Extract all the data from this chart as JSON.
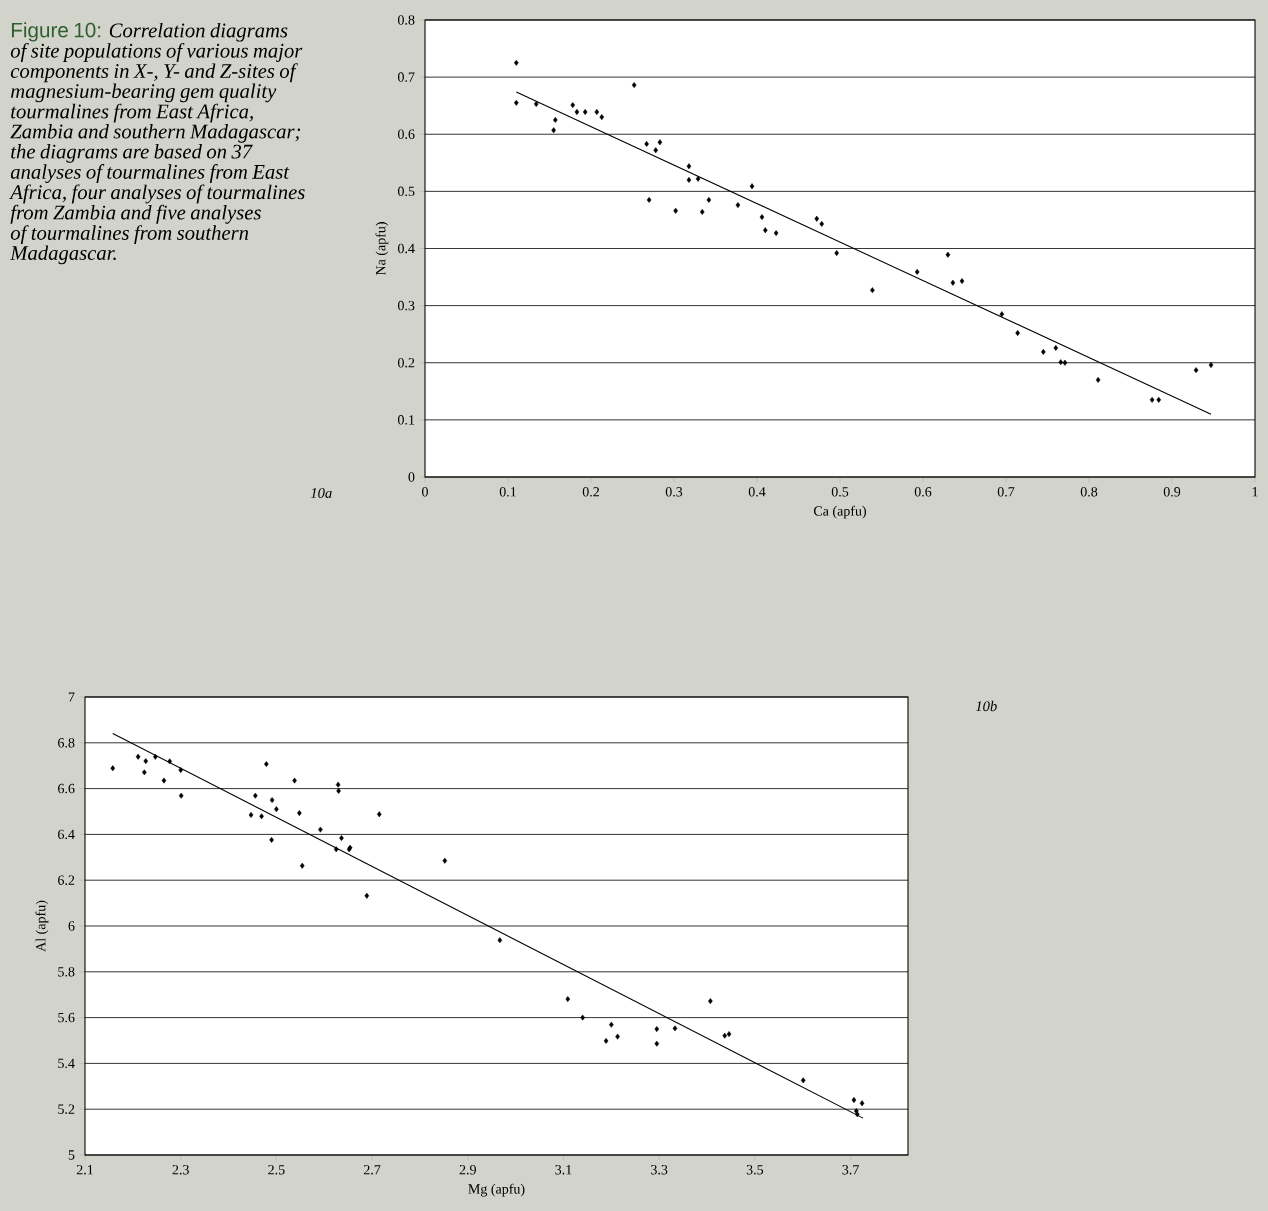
{
  "chart_data": [
    {
      "type": "other",
      "title": "Figure 10:",
      "subtitle": "Correlation diagrams of site populations of various major components in X-, Y- and Z-sites of magnesium-bearing gem quality tourmalines from East Africa, Zambia and southern Madagascar; the diagrams are based on 37 analyses of tourmalines from East Africa, four analyses of tourmalines from Zambia and five analyses of tourmalines from southern Madagascar."
    },
    {
      "type": "scatter",
      "xlabel": "Ca (apfu)",
      "ylabel": "Na (apfu)",
      "annotations": [
        "10a"
      ],
      "grid": "y",
      "xlim": [
        0,
        1
      ],
      "ylim": [
        0,
        0.8
      ],
      "xticks": [
        0,
        0.1,
        0.2,
        0.3,
        0.4,
        0.5,
        0.6,
        0.7,
        0.8,
        0.9,
        1
      ],
      "yticks": [
        0,
        0.1,
        0.2,
        0.3,
        0.4,
        0.5,
        0.6,
        0.7,
        0.8
      ],
      "series": [
        {
          "marker": "diamond",
          "color": "#000000",
          "x": [
            0.11,
            0.11,
            0.134,
            0.157,
            0.155,
            0.178,
            0.183,
            0.193,
            0.207,
            0.213,
            0.252,
            0.267,
            0.278,
            0.283,
            0.27,
            0.302,
            0.318,
            0.318,
            0.329,
            0.334,
            0.342,
            0.377,
            0.394,
            0.406,
            0.41,
            0.423,
            0.472,
            0.478,
            0.496,
            0.539,
            0.593,
            0.63,
            0.636,
            0.647,
            0.695,
            0.714,
            0.745,
            0.76,
            0.766,
            0.771,
            0.811,
            0.876,
            0.884,
            0.929,
            0.947
          ],
          "values": [
            0.725,
            0.655,
            0.653,
            0.625,
            0.607,
            0.651,
            0.639,
            0.639,
            0.639,
            0.63,
            0.686,
            0.583,
            0.572,
            0.586,
            0.485,
            0.466,
            0.544,
            0.52,
            0.522,
            0.464,
            0.485,
            0.476,
            0.509,
            0.455,
            0.432,
            0.427,
            0.452,
            0.443,
            0.392,
            0.327,
            0.359,
            0.389,
            0.34,
            0.343,
            0.285,
            0.252,
            0.219,
            0.226,
            0.201,
            0.2,
            0.17,
            0.135,
            0.135,
            0.187,
            0.196
          ]
        },
        {
          "type": "line",
          "marker": "none",
          "color": "#000000",
          "x": [
            0.11,
            0.947
          ],
          "values": [
            0.674,
            0.11
          ]
        }
      ]
    },
    {
      "type": "scatter",
      "xlabel": "Mg (apfu)",
      "ylabel": "Al (apfu)",
      "annotations": [
        "10b"
      ],
      "grid": "y",
      "xlim": [
        2.1,
        3.82
      ],
      "ylim": [
        5,
        7
      ],
      "xticks": [
        2.1,
        2.3,
        2.5,
        2.7,
        2.9,
        3.1,
        3.3,
        3.5,
        3.7
      ],
      "yticks": [
        5,
        5.2,
        5.4,
        5.6,
        5.8,
        6,
        6.2,
        6.4,
        6.6,
        6.8,
        7
      ],
      "series": [
        {
          "marker": "diamond",
          "color": "#000000",
          "x": [
            2.158,
            2.211,
            2.227,
            2.224,
            2.247,
            2.277,
            2.265,
            2.3,
            2.301,
            2.479,
            2.456,
            2.447,
            2.469,
            2.491,
            2.5,
            2.49,
            2.538,
            2.548,
            2.554,
            2.629,
            2.63,
            2.592,
            2.636,
            2.625,
            2.652,
            2.654,
            2.715,
            2.689,
            2.852,
            2.967,
            3.109,
            3.14,
            3.2,
            3.189,
            3.213,
            3.295,
            3.295,
            3.333,
            3.407,
            3.437,
            3.446,
            3.601,
            3.707,
            3.724,
            3.712,
            3.714
          ],
          "values": [
            6.689,
            6.739,
            6.72,
            6.671,
            6.739,
            6.719,
            6.635,
            6.681,
            6.569,
            6.707,
            6.569,
            6.485,
            6.479,
            6.55,
            6.51,
            6.376,
            6.635,
            6.493,
            6.263,
            6.617,
            6.59,
            6.421,
            6.384,
            6.335,
            6.335,
            6.342,
            6.488,
            6.132,
            6.285,
            5.938,
            5.681,
            5.6,
            5.569,
            5.498,
            5.517,
            5.55,
            5.486,
            5.553,
            5.672,
            5.521,
            5.528,
            5.326,
            5.24,
            5.226,
            5.192,
            5.178
          ]
        },
        {
          "type": "line",
          "marker": "none",
          "color": "#000000",
          "x": [
            2.158,
            3.726
          ],
          "values": [
            6.841,
            5.161
          ]
        }
      ]
    }
  ]
}
